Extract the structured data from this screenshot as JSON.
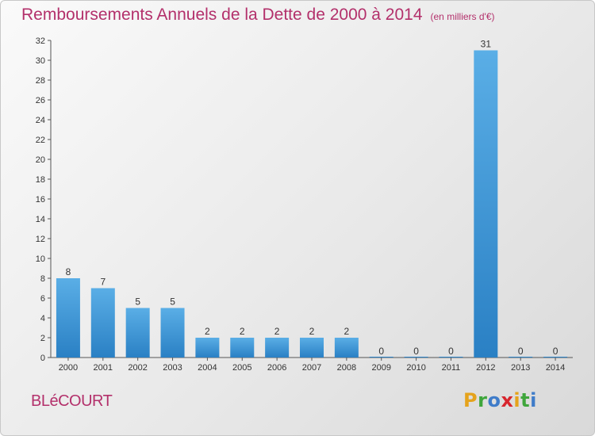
{
  "chart_data": {
    "type": "bar",
    "title": "Remboursements Annuels de la Dette de 2000 à 2014",
    "unit_label": "(en milliers d'€)",
    "categories": [
      "2000",
      "2001",
      "2002",
      "2003",
      "2004",
      "2005",
      "2006",
      "2007",
      "2008",
      "2009",
      "2010",
      "2011",
      "2012",
      "2013",
      "2014"
    ],
    "values": [
      8,
      7,
      5,
      5,
      2,
      2,
      2,
      2,
      2,
      0,
      0,
      0,
      31,
      0,
      0
    ],
    "ylim": [
      0,
      32
    ],
    "yticks": [
      0,
      2,
      4,
      6,
      8,
      10,
      12,
      14,
      16,
      18,
      20,
      22,
      24,
      26,
      28,
      30,
      32
    ],
    "grid": false,
    "colors": {
      "bar_light": "#5aaee6",
      "bar_dark": "#2a80c4",
      "title": "#b3306b"
    }
  },
  "commune": "BLéCOURT",
  "brand": {
    "letters": [
      "P",
      "r",
      "o",
      "x",
      "i",
      "t",
      "i"
    ],
    "colors": [
      "#e5a31c",
      "#3fa63c",
      "#3f7cc9",
      "#d7262e",
      "#e5a31c",
      "#3fa63c",
      "#3f7cc9"
    ]
  }
}
